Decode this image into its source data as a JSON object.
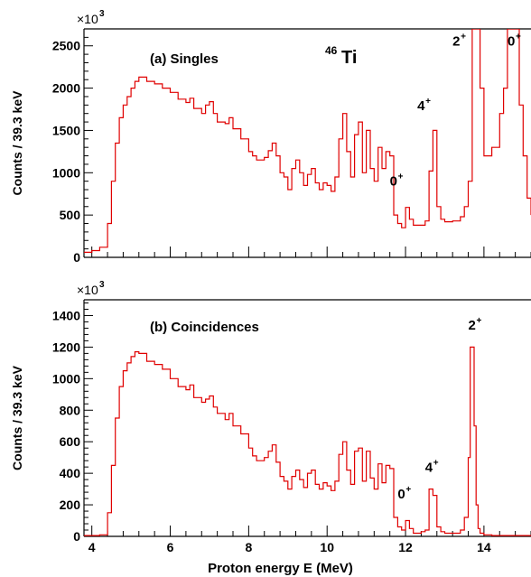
{
  "chart_data": [
    {
      "type": "line",
      "panel_title": "(a) Singles",
      "nucleus": {
        "mass": "46",
        "symbol": "Ti"
      },
      "ylabel": "Counts / 39.3 keV",
      "xlabel": "",
      "y_multiplier": {
        "base": "×10",
        "exp": "3"
      },
      "xlim": [
        3.8,
        15.2
      ],
      "ylim": [
        0,
        2700
      ],
      "yticks": [
        0,
        500,
        1000,
        1500,
        2000,
        2500
      ],
      "ytick_labels": [
        "0",
        "500",
        "1000",
        "1500",
        "2000",
        "2500"
      ],
      "xticks": [
        4,
        6,
        8,
        10,
        12,
        14
      ],
      "color": "#e00000",
      "annotations": [
        {
          "label": "2",
          "sup": "+",
          "x": 13.2,
          "y": 2500
        },
        {
          "label": "0",
          "sup": "+",
          "x": 14.6,
          "y": 2500
        },
        {
          "label": "4",
          "sup": "+",
          "x": 12.3,
          "y": 1740
        },
        {
          "label": "0",
          "sup": "+",
          "x": 11.6,
          "y": 850
        }
      ],
      "series": [
        {
          "x": [
            3.8,
            4.0,
            4.2,
            4.4,
            4.5,
            4.6,
            4.7,
            4.8,
            4.9,
            5.0,
            5.1,
            5.2,
            5.4,
            5.6,
            5.8,
            6.0,
            6.2,
            6.4,
            6.5,
            6.6,
            6.8,
            6.9,
            7.0,
            7.1,
            7.2,
            7.4,
            7.5,
            7.6,
            7.8,
            8.0,
            8.1,
            8.2,
            8.4,
            8.5,
            8.6,
            8.7,
            8.8,
            8.9,
            9.0,
            9.1,
            9.2,
            9.3,
            9.4,
            9.5,
            9.6,
            9.7,
            9.8,
            9.9,
            10.0,
            10.1,
            10.2,
            10.3,
            10.4,
            10.5,
            10.6,
            10.7,
            10.8,
            10.9,
            11.0,
            11.1,
            11.2,
            11.3,
            11.4,
            11.5,
            11.6,
            11.7,
            11.8,
            11.9,
            12.0,
            12.1,
            12.2,
            12.4,
            12.5,
            12.6,
            12.7,
            12.8,
            12.9,
            13.0,
            13.2,
            13.4,
            13.5,
            13.6,
            13.7,
            13.75,
            13.8,
            13.9,
            14.0,
            14.2,
            14.4,
            14.5,
            14.6,
            14.7,
            14.8,
            14.9,
            15.0,
            15.1,
            15.2
          ],
          "y": [
            60,
            80,
            120,
            400,
            900,
            1350,
            1650,
            1800,
            1900,
            2000,
            2080,
            2130,
            2080,
            2050,
            2000,
            1950,
            1870,
            1830,
            1880,
            1760,
            1700,
            1800,
            1840,
            1700,
            1600,
            1580,
            1650,
            1520,
            1400,
            1250,
            1200,
            1150,
            1180,
            1260,
            1350,
            1200,
            1000,
            950,
            800,
            1050,
            1150,
            1000,
            850,
            980,
            1050,
            880,
            800,
            880,
            850,
            780,
            950,
            1400,
            1700,
            1250,
            950,
            1450,
            1600,
            1000,
            1500,
            1050,
            900,
            1300,
            1050,
            1250,
            1200,
            500,
            400,
            350,
            590,
            450,
            380,
            380,
            430,
            1020,
            1500,
            600,
            450,
            420,
            430,
            480,
            600,
            900,
            2700,
            2700,
            2700,
            2000,
            1200,
            1300,
            1700,
            2000,
            2700,
            2700,
            2700,
            1800,
            1200,
            700,
            500
          ]
        }
      ]
    },
    {
      "type": "line",
      "panel_title": "(b) Coincidences",
      "ylabel": "Counts / 39.3 keV",
      "xlabel": "Proton energy E (MeV)",
      "y_multiplier": {
        "base": "×10",
        "exp": "3"
      },
      "xlim": [
        3.8,
        15.2
      ],
      "ylim": [
        0,
        1500
      ],
      "yticks": [
        0,
        200,
        400,
        600,
        800,
        1000,
        1200,
        1400
      ],
      "ytick_labels": [
        "0",
        "200",
        "400",
        "600",
        "800",
        "1000",
        "1200",
        "1400"
      ],
      "xticks": [
        4,
        6,
        8,
        10,
        12,
        14
      ],
      "xtick_labels": [
        "4",
        "6",
        "8",
        "10",
        "12",
        "14"
      ],
      "color": "#e00000",
      "annotations": [
        {
          "label": "2",
          "sup": "+",
          "x": 13.6,
          "y": 1310
        },
        {
          "label": "4",
          "sup": "+",
          "x": 12.5,
          "y": 410
        },
        {
          "label": "0",
          "sup": "+",
          "x": 11.8,
          "y": 240
        }
      ],
      "series": [
        {
          "x": [
            3.8,
            4.0,
            4.2,
            4.4,
            4.5,
            4.6,
            4.7,
            4.8,
            4.9,
            5.0,
            5.1,
            5.2,
            5.4,
            5.6,
            5.8,
            6.0,
            6.2,
            6.4,
            6.5,
            6.6,
            6.8,
            6.9,
            7.0,
            7.1,
            7.2,
            7.4,
            7.5,
            7.6,
            7.8,
            8.0,
            8.1,
            8.2,
            8.4,
            8.5,
            8.6,
            8.7,
            8.8,
            8.9,
            9.0,
            9.1,
            9.2,
            9.3,
            9.4,
            9.5,
            9.6,
            9.7,
            9.8,
            9.9,
            10.0,
            10.1,
            10.2,
            10.3,
            10.4,
            10.5,
            10.6,
            10.7,
            10.8,
            10.9,
            11.0,
            11.1,
            11.2,
            11.3,
            11.4,
            11.5,
            11.6,
            11.7,
            11.8,
            11.9,
            12.0,
            12.1,
            12.2,
            12.4,
            12.5,
            12.6,
            12.7,
            12.8,
            12.9,
            13.0,
            13.2,
            13.4,
            13.5,
            13.6,
            13.65,
            13.7,
            13.75,
            13.8,
            13.85,
            13.9,
            14.0,
            14.2,
            14.5,
            15.2
          ],
          "y": [
            5,
            5,
            10,
            150,
            450,
            750,
            950,
            1050,
            1100,
            1140,
            1170,
            1160,
            1110,
            1090,
            1060,
            1000,
            950,
            930,
            960,
            880,
            850,
            870,
            890,
            820,
            780,
            740,
            780,
            700,
            650,
            560,
            510,
            480,
            500,
            540,
            580,
            470,
            380,
            350,
            300,
            380,
            420,
            360,
            310,
            400,
            420,
            330,
            300,
            340,
            320,
            290,
            350,
            520,
            600,
            420,
            330,
            540,
            560,
            350,
            540,
            370,
            300,
            460,
            340,
            450,
            430,
            120,
            60,
            40,
            100,
            50,
            20,
            30,
            40,
            300,
            260,
            60,
            30,
            20,
            20,
            40,
            120,
            500,
            1200,
            1200,
            700,
            200,
            50,
            20,
            10,
            5,
            5,
            5
          ]
        }
      ]
    }
  ]
}
